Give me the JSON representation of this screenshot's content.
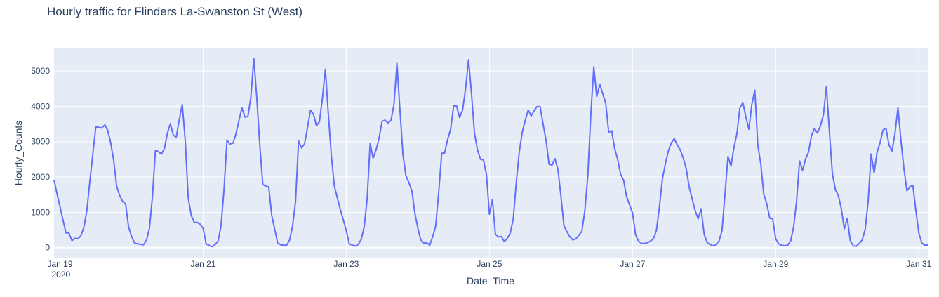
{
  "chart_data": {
    "type": "line",
    "title": "Hourly traffic for Flinders La-Swanston St (West)",
    "xlabel": "Date_Time",
    "ylabel": "Hourly_Counts",
    "x_start": "2020-01-18T22:00",
    "x_frequency": "hourly",
    "xlim": [
      "2020-01-18T22:00",
      "2020-01-31T03:00"
    ],
    "ylim": [
      -304,
      5656
    ],
    "x_ticks": [
      "2020-01-19",
      "2020-01-21",
      "2020-01-23",
      "2020-01-25",
      "2020-01-27",
      "2020-01-29",
      "2020-01-31"
    ],
    "x_tick_labels": [
      "Jan 19",
      "Jan 21",
      "Jan 23",
      "Jan 25",
      "Jan 27",
      "Jan 29",
      "Jan 31"
    ],
    "x_tick_year": "2020",
    "y_ticks": [
      0,
      1000,
      2000,
      3000,
      4000,
      5000
    ],
    "grid": true,
    "line_color": "#636efa",
    "plot_bgcolor": "#e5ecf6",
    "values": [
      1907,
      1529,
      1158,
      781,
      417,
      417,
      199,
      265,
      252,
      338,
      569,
      1046,
      1873,
      2635,
      3416,
      3405,
      3383,
      3475,
      3317,
      2966,
      2469,
      1741,
      1476,
      1311,
      1231,
      583,
      318,
      132,
      106,
      95,
      79,
      218,
      549,
      1443,
      2754,
      2714,
      2648,
      2800,
      3231,
      3509,
      3178,
      3131,
      3628,
      4051,
      3032,
      1410,
      914,
      715,
      715,
      662,
      549,
      106,
      66,
      26,
      86,
      185,
      616,
      1642,
      3045,
      2933,
      2953,
      3217,
      3595,
      3959,
      3694,
      3707,
      4257,
      5349,
      4224,
      2900,
      1787,
      1741,
      1721,
      914,
      516,
      132,
      79,
      70,
      66,
      218,
      616,
      1311,
      3019,
      2820,
      2933,
      3396,
      3893,
      3773,
      3449,
      3562,
      4224,
      5051,
      3760,
      2600,
      1741,
      1410,
      1079,
      781,
      483,
      106,
      73,
      46,
      86,
      232,
      583,
      1377,
      2952,
      2535,
      2767,
      3098,
      3575,
      3608,
      3528,
      3595,
      4058,
      5217,
      3893,
      2635,
      2039,
      1840,
      1609,
      980,
      549,
      218,
      132,
      132,
      73,
      318,
      616,
      1576,
      2668,
      2681,
      3065,
      3350,
      4012,
      4012,
      3681,
      3893,
      4488,
      5316,
      4356,
      3231,
      2767,
      2502,
      2482,
      2072,
      947,
      1364,
      384,
      305,
      318,
      172,
      265,
      417,
      814,
      1840,
      2701,
      3264,
      3595,
      3893,
      3727,
      3879,
      3992,
      3992,
      3495,
      3032,
      2357,
      2337,
      2516,
      2204,
      1443,
      616,
      450,
      305,
      218,
      252,
      351,
      463,
      1046,
      2039,
      3760,
      5117,
      4277,
      4621,
      4356,
      4091,
      3264,
      3310,
      2800,
      2502,
      2072,
      1907,
      1443,
      1211,
      980,
      371,
      185,
      119,
      119,
      139,
      185,
      252,
      483,
      1145,
      1940,
      2370,
      2734,
      2966,
      3085,
      2900,
      2767,
      2535,
      2238,
      1708,
      1377,
      1046,
      814,
      1099,
      384,
      152,
      86,
      53,
      86,
      185,
      483,
      1509,
      2582,
      2304,
      2833,
      3231,
      3959,
      4104,
      3694,
      3350,
      4058,
      4455,
      2900,
      2370,
      1509,
      1245,
      834,
      814,
      252,
      106,
      66,
      53,
      66,
      185,
      583,
      1311,
      2449,
      2185,
      2502,
      2701,
      3164,
      3376,
      3244,
      3442,
      3760,
      4554,
      3297,
      2105,
      1642,
      1476,
      1112,
      530,
      834,
      199,
      53,
      40,
      119,
      218,
      516,
      1311,
      2648,
      2118,
      2701,
      2966,
      3330,
      3376,
      2900,
      2734,
      3231,
      3959,
      3032,
      2238,
      1609,
      1721,
      1761,
      1046,
      417,
      132,
      66,
      79
    ]
  }
}
